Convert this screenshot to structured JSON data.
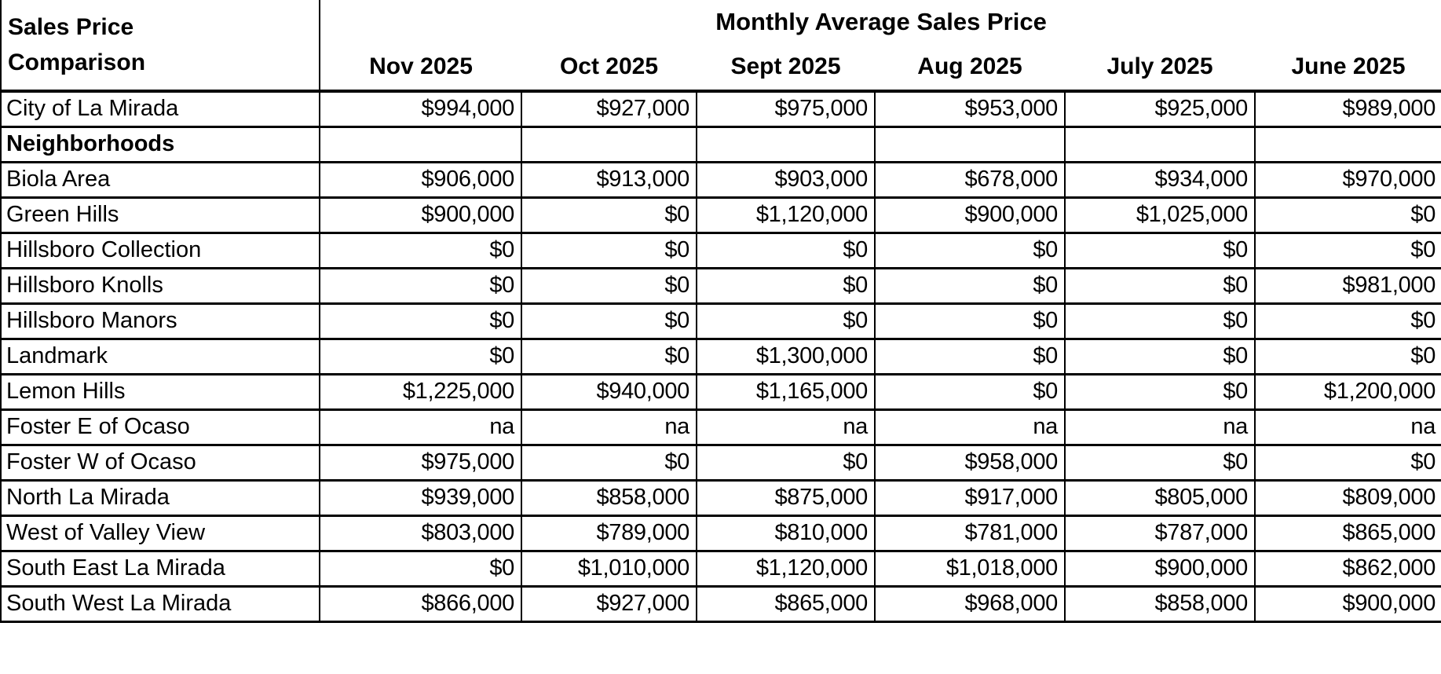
{
  "table": {
    "corner_title_line1": "Sales Price",
    "corner_title_line2": "Comparison",
    "header_title": "Monthly Average Sales Price",
    "columns": [
      "Nov 2025",
      "Oct 2025",
      "Sept 2025",
      "Aug 2025",
      "July 2025",
      "June 2025"
    ],
    "rows": [
      {
        "label": "City of La Mirada",
        "bold": false,
        "values": [
          "$994,000",
          "$927,000",
          "$975,000",
          "$953,000",
          "$925,000",
          "$989,000"
        ]
      },
      {
        "label": "Neighborhoods",
        "bold": true,
        "values": [
          "",
          "",
          "",
          "",
          "",
          ""
        ]
      },
      {
        "label": "Biola Area",
        "bold": false,
        "values": [
          "$906,000",
          "$913,000",
          "$903,000",
          "$678,000",
          "$934,000",
          "$970,000"
        ]
      },
      {
        "label": "Green Hills",
        "bold": false,
        "values": [
          "$900,000",
          "$0",
          "$1,120,000",
          "$900,000",
          "$1,025,000",
          "$0"
        ]
      },
      {
        "label": "Hillsboro Collection",
        "bold": false,
        "values": [
          "$0",
          "$0",
          "$0",
          "$0",
          "$0",
          "$0"
        ]
      },
      {
        "label": "Hillsboro Knolls",
        "bold": false,
        "values": [
          "$0",
          "$0",
          "$0",
          "$0",
          "$0",
          "$981,000"
        ]
      },
      {
        "label": "Hillsboro Manors",
        "bold": false,
        "values": [
          "$0",
          "$0",
          "$0",
          "$0",
          "$0",
          "$0"
        ]
      },
      {
        "label": "Landmark",
        "bold": false,
        "values": [
          "$0",
          "$0",
          "$1,300,000",
          "$0",
          "$0",
          "$0"
        ]
      },
      {
        "label": "Lemon Hills",
        "bold": false,
        "values": [
          "$1,225,000",
          "$940,000",
          "$1,165,000",
          "$0",
          "$0",
          "$1,200,000"
        ]
      },
      {
        "label": "Foster E of Ocaso",
        "bold": false,
        "values": [
          "na",
          "na",
          "na",
          "na",
          "na",
          "na"
        ]
      },
      {
        "label": "Foster W of Ocaso",
        "bold": false,
        "values": [
          "$975,000",
          "$0",
          "$0",
          "$958,000",
          "$0",
          "$0"
        ]
      },
      {
        "label": "North La Mirada",
        "bold": false,
        "values": [
          "$939,000",
          "$858,000",
          "$875,000",
          "$917,000",
          "$805,000",
          "$809,000"
        ]
      },
      {
        "label": "West of Valley View",
        "bold": false,
        "values": [
          "$803,000",
          "$789,000",
          "$810,000",
          "$781,000",
          "$787,000",
          "$865,000"
        ]
      },
      {
        "label": "South East La Mirada",
        "bold": false,
        "values": [
          "$0",
          "$1,010,000",
          "$1,120,000",
          "$1,018,000",
          "$900,000",
          "$862,000"
        ]
      },
      {
        "label": "South West La Mirada",
        "bold": false,
        "values": [
          "$866,000",
          "$927,000",
          "$865,000",
          "$968,000",
          "$858,000",
          "$900,000"
        ]
      }
    ],
    "colors": {
      "border": "#000000",
      "text": "#000000",
      "background": "#ffffff"
    }
  }
}
